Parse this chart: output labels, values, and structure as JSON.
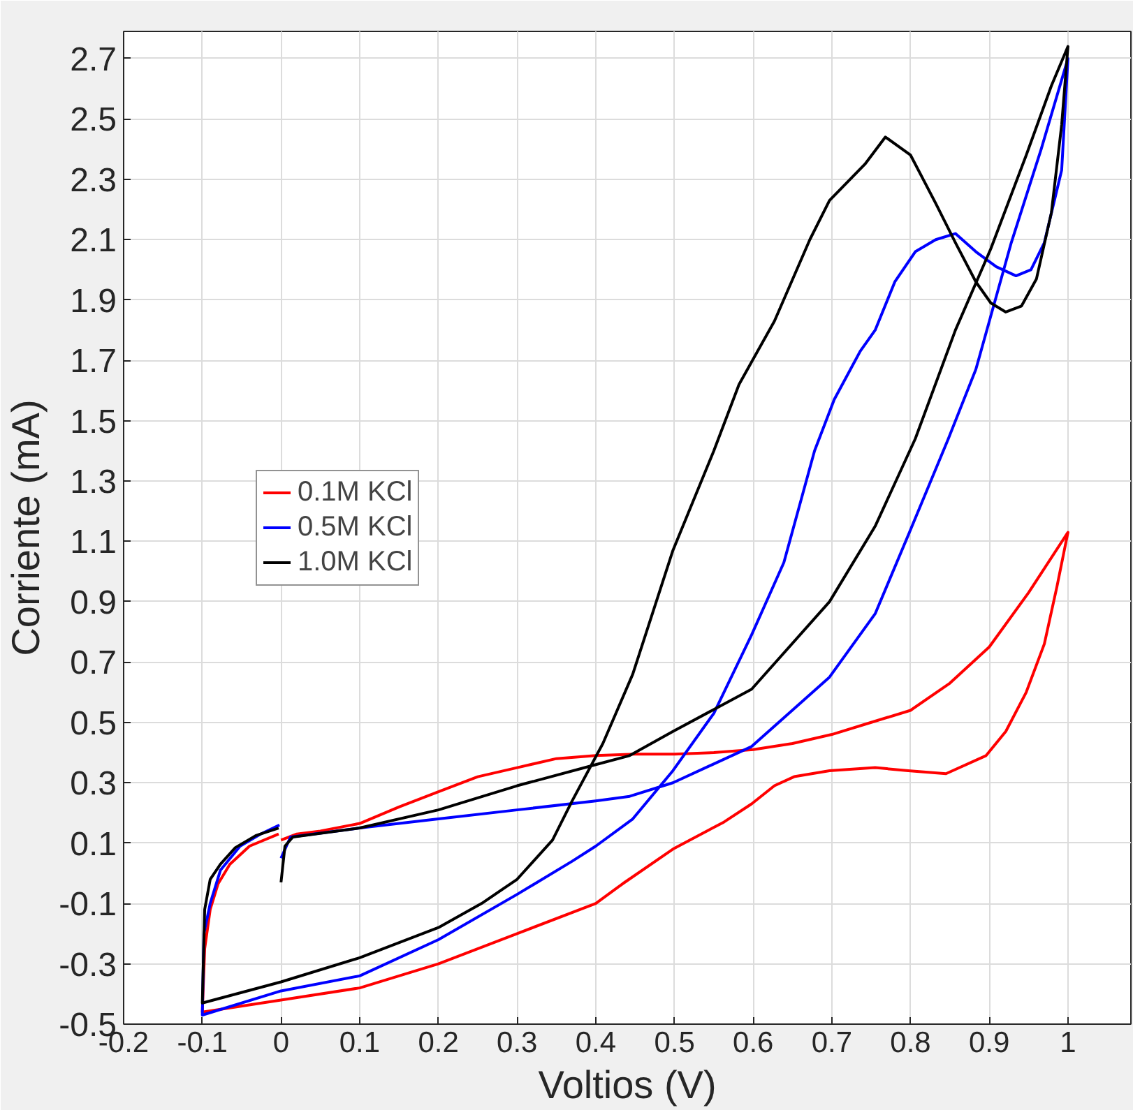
{
  "chart_data": {
    "type": "line",
    "xlabel": "Voltios (V)",
    "ylabel": "Corriente (mA)",
    "xlim": [
      -0.2,
      1.08
    ],
    "ylim": [
      -0.5,
      2.79
    ],
    "xticks": [
      -0.2,
      -0.1,
      0,
      0.1,
      0.2,
      0.3,
      0.4,
      0.5,
      0.6,
      0.7,
      0.8,
      0.9,
      1
    ],
    "yticks": [
      -0.5,
      -0.3,
      -0.1,
      0.1,
      0.3,
      0.5,
      0.7,
      0.9,
      1.1,
      1.3,
      1.5,
      1.7,
      1.9,
      2.1,
      2.3,
      2.5,
      2.7
    ],
    "grid": true,
    "legend": "left",
    "series": [
      {
        "name": "0.1M KCl",
        "color": "#ff0000",
        "x": [
          0,
          0.02,
          0.05,
          0.1,
          0.15,
          0.2,
          0.25,
          0.3,
          0.35,
          0.4,
          0.45,
          0.5,
          0.55,
          0.6,
          0.65,
          0.7,
          0.75,
          0.8,
          0.85,
          0.9,
          0.95,
          1.0,
          0.986,
          0.97,
          0.947,
          0.921,
          0.896,
          0.845,
          0.797,
          0.755,
          0.697,
          0.652,
          0.627,
          0.598,
          0.563,
          0.498,
          0.434,
          0.4,
          0.3,
          0.2,
          0.1,
          0,
          -0.1,
          -0.097,
          -0.09,
          -0.08,
          -0.065,
          -0.04,
          -0.003
        ],
        "values": [
          0.11,
          0.13,
          0.14,
          0.165,
          0.22,
          0.27,
          0.32,
          0.35,
          0.38,
          0.39,
          0.395,
          0.395,
          0.4,
          0.41,
          0.43,
          0.46,
          0.5,
          0.54,
          0.63,
          0.75,
          0.93,
          1.13,
          0.95,
          0.76,
          0.6,
          0.47,
          0.39,
          0.33,
          0.34,
          0.35,
          0.34,
          0.32,
          0.29,
          0.23,
          0.17,
          0.08,
          -0.035,
          -0.1,
          -0.2,
          -0.3,
          -0.38,
          -0.42,
          -0.46,
          -0.25,
          -0.12,
          -0.035,
          0.03,
          0.09,
          0.13
        ]
      },
      {
        "name": "0.5M KCl",
        "color": "#0000ff",
        "x": [
          0,
          0.012,
          0.1,
          0.2,
          0.3,
          0.4,
          0.443,
          0.498,
          0.598,
          0.697,
          0.755,
          0.797,
          0.848,
          0.883,
          0.928,
          0.966,
          1.0,
          0.992,
          0.97,
          0.953,
          0.934,
          0.909,
          0.883,
          0.857,
          0.832,
          0.806,
          0.78,
          0.755,
          0.736,
          0.703,
          0.678,
          0.639,
          0.598,
          0.55,
          0.498,
          0.447,
          0.4,
          0.37,
          0.3,
          0.2,
          0.1,
          0,
          -0.1,
          -0.098,
          -0.09,
          -0.077,
          -0.052,
          -0.026,
          -0.002
        ],
        "values": [
          0.05,
          0.12,
          0.15,
          0.18,
          0.21,
          0.24,
          0.255,
          0.3,
          0.42,
          0.65,
          0.86,
          1.12,
          1.44,
          1.67,
          2.09,
          2.4,
          2.7,
          2.33,
          2.09,
          2.0,
          1.98,
          2.01,
          2.06,
          2.12,
          2.1,
          2.06,
          1.96,
          1.8,
          1.73,
          1.57,
          1.4,
          1.03,
          0.79,
          0.53,
          0.34,
          0.18,
          0.09,
          0.04,
          -0.07,
          -0.22,
          -0.34,
          -0.39,
          -0.47,
          -0.2,
          -0.1,
          0.01,
          0.09,
          0.13,
          0.16
        ]
      },
      {
        "name": "1.0M KCl",
        "color": "#000000",
        "x": [
          0,
          0.005,
          0.015,
          0.1,
          0.2,
          0.3,
          0.4,
          0.443,
          0.498,
          0.598,
          0.697,
          0.755,
          0.806,
          0.857,
          0.902,
          0.947,
          0.979,
          1.0,
          0.992,
          0.979,
          0.96,
          0.941,
          0.921,
          0.902,
          0.883,
          0.857,
          0.832,
          0.8,
          0.768,
          0.742,
          0.697,
          0.672,
          0.627,
          0.582,
          0.55,
          0.498,
          0.447,
          0.409,
          0.37,
          0.345,
          0.3,
          0.255,
          0.2,
          0.1,
          0,
          -0.1,
          -0.097,
          -0.09,
          -0.077,
          -0.058,
          -0.032,
          -0.003
        ],
        "values": [
          -0.03,
          0.09,
          0.12,
          0.15,
          0.21,
          0.29,
          0.36,
          0.39,
          0.47,
          0.61,
          0.9,
          1.15,
          1.44,
          1.8,
          2.07,
          2.38,
          2.61,
          2.74,
          2.48,
          2.19,
          1.97,
          1.88,
          1.86,
          1.89,
          1.96,
          2.09,
          2.22,
          2.38,
          2.44,
          2.35,
          2.23,
          2.1,
          1.83,
          1.62,
          1.4,
          1.07,
          0.66,
          0.43,
          0.24,
          0.11,
          -0.02,
          -0.1,
          -0.18,
          -0.28,
          -0.36,
          -0.43,
          -0.12,
          -0.02,
          0.03,
          0.085,
          0.125,
          0.15
        ]
      }
    ]
  }
}
